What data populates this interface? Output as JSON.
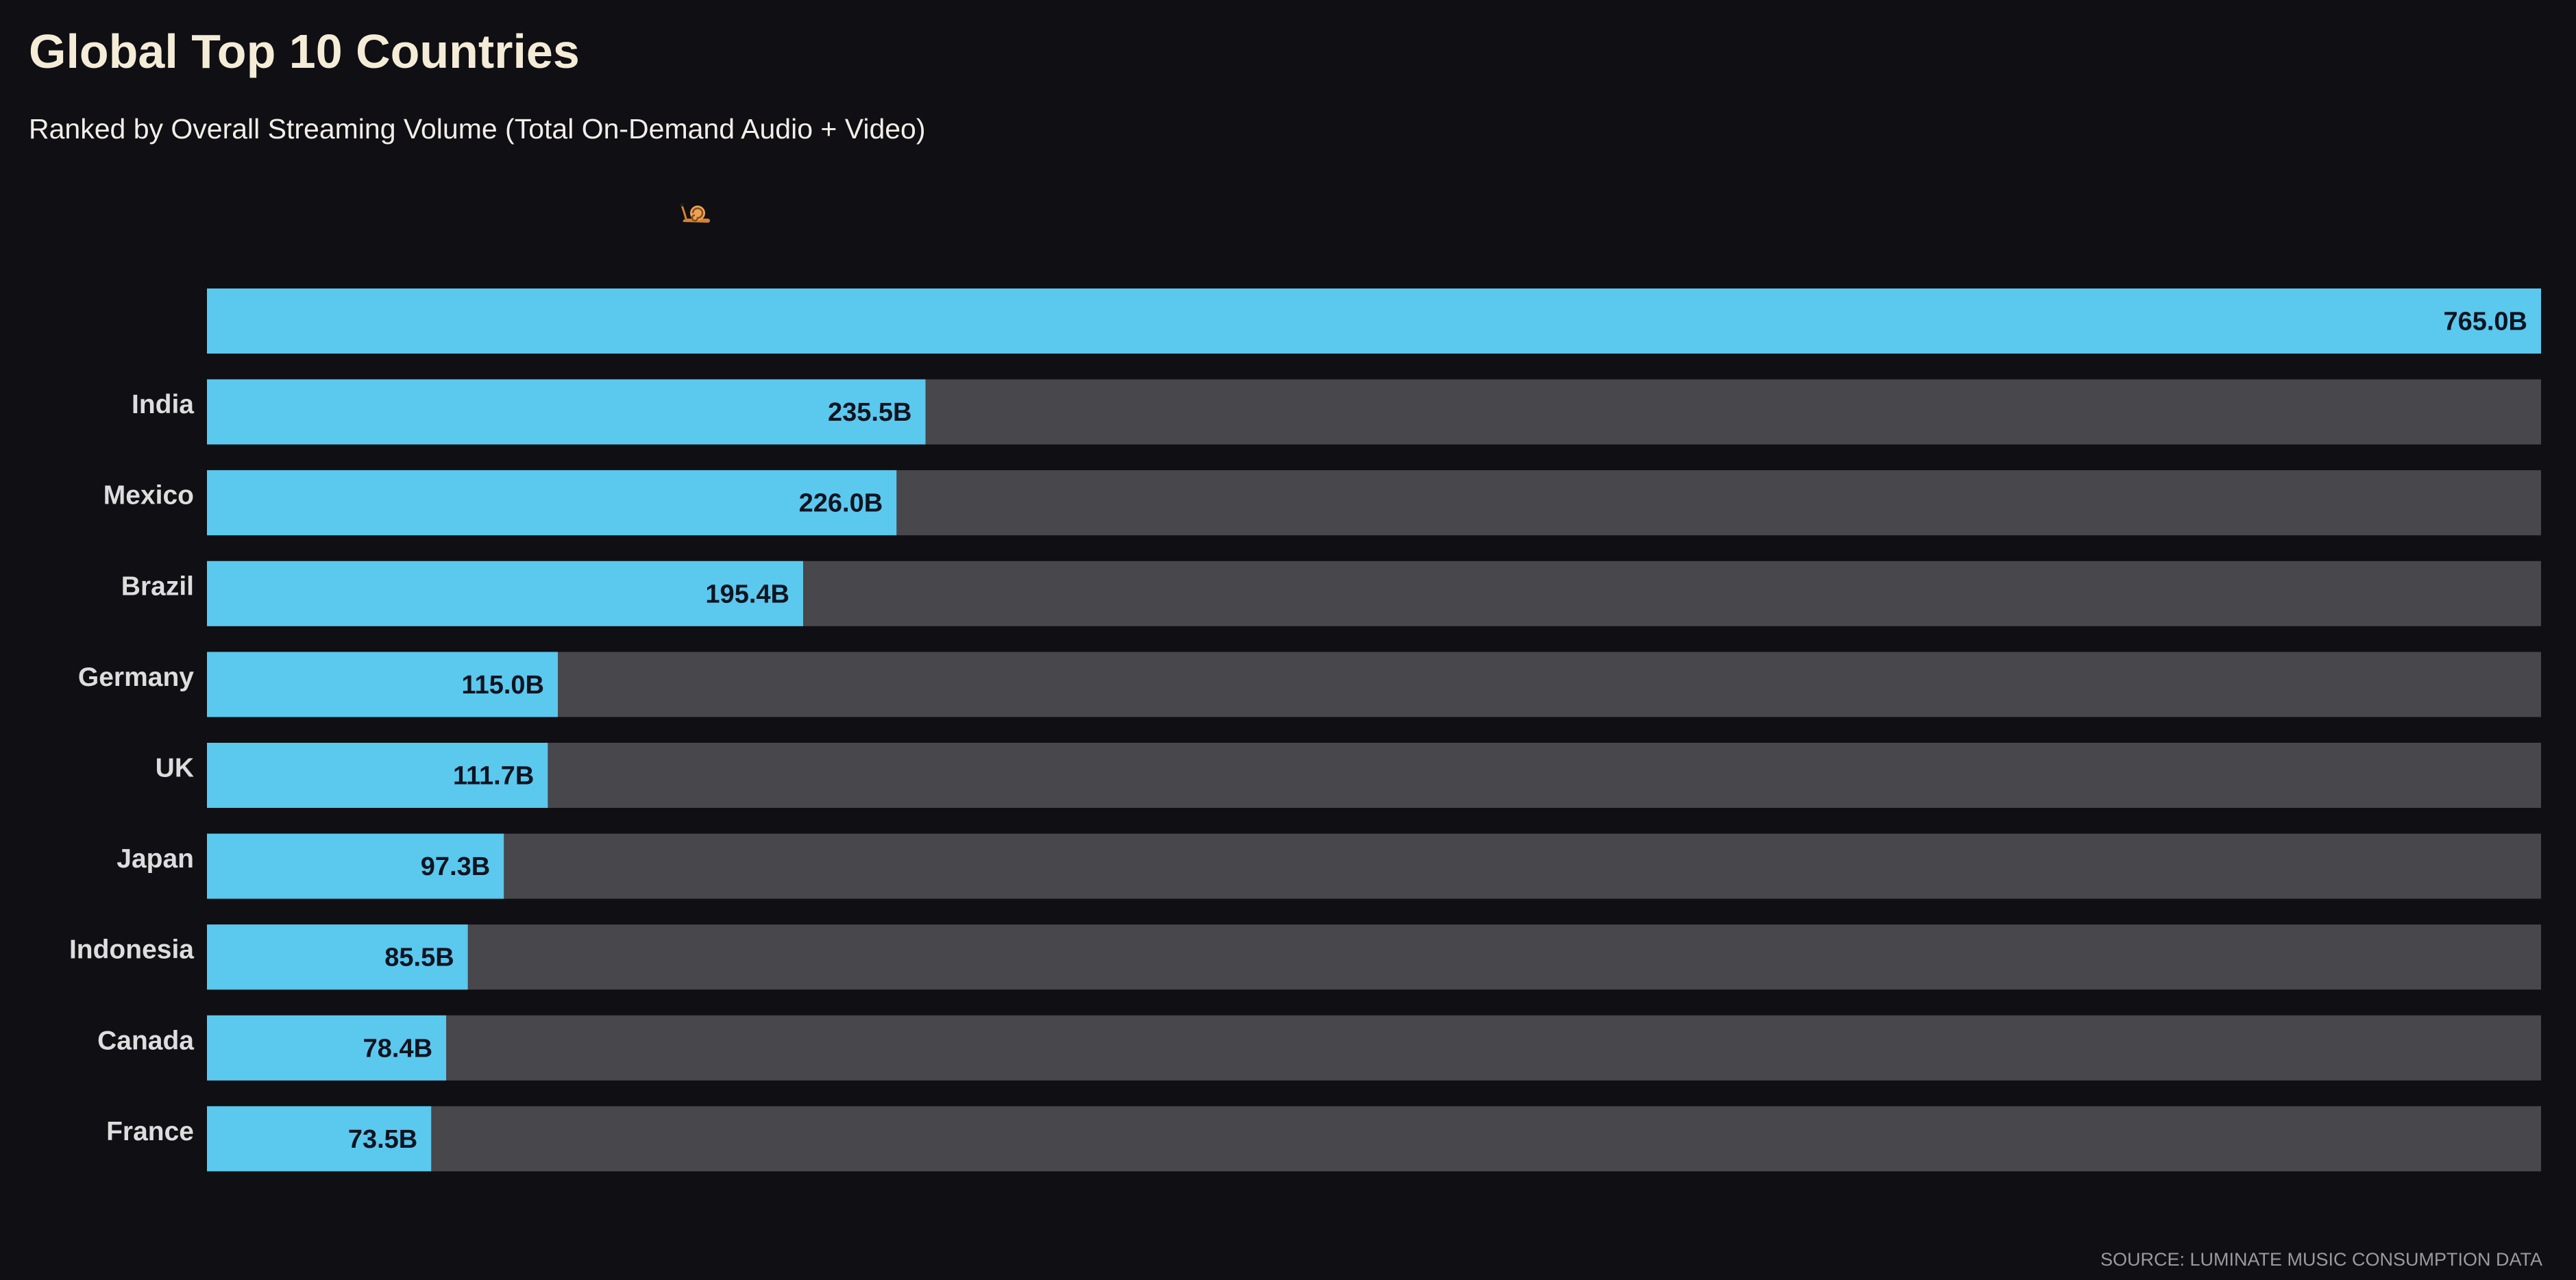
{
  "header": {
    "title": "Global Top 10 Countries",
    "subtitle": "Ranked by Overall Streaming Volume (Total On-Demand Audio + Video)"
  },
  "marker_icon": "snail-icon",
  "footer": {
    "source": "SOURCE: LUMINATE MUSIC CONSUMPTION DATA"
  },
  "colors": {
    "background": "#0f0f14",
    "bar_fill": "#5bc8ee",
    "bar_track": "#47474c",
    "title": "#f4ecd6",
    "label": "#dddddd",
    "value_text": "#0e1420"
  },
  "chart_data": {
    "type": "bar",
    "orientation": "horizontal",
    "title": "Global Top 10 Countries",
    "subtitle": "Ranked by Overall Streaming Volume (Total On-Demand Audio + Video)",
    "categories": [
      "",
      "India",
      "Mexico",
      "Brazil",
      "Germany",
      "UK",
      "Japan",
      "Indonesia",
      "Canada",
      "France"
    ],
    "values": [
      765.0,
      235.5,
      226.0,
      195.4,
      115.0,
      111.7,
      97.3,
      85.5,
      78.4,
      73.5
    ],
    "value_labels": [
      "765.0B",
      "235.5B",
      "226.0B",
      "195.4B",
      "115.0B",
      "111.7B",
      "97.3B",
      "85.5B",
      "78.4B",
      "73.5B"
    ],
    "xlim": [
      0,
      765.0
    ],
    "grid": false,
    "legend": "none"
  }
}
